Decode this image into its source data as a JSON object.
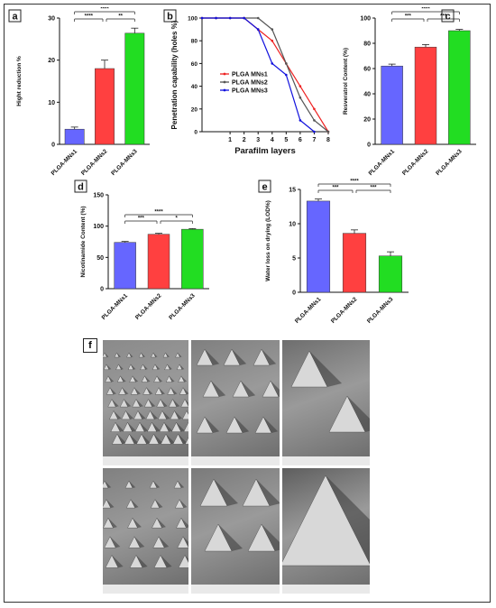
{
  "charts": {
    "a": {
      "letter": "a",
      "type": "bar",
      "ylabel": "Hight reduction %",
      "yticks": [
        0,
        10,
        20,
        30
      ],
      "ylim": [
        0,
        30
      ],
      "categories": [
        "PLGA-MNs1",
        "PLGA-MNs2",
        "PLGA-MNs3"
      ],
      "values": [
        3.6,
        18,
        26.4
      ],
      "errors": [
        0.5,
        2,
        1.2
      ],
      "colors": [
        "#6666ff",
        "#ff4040",
        "#22dd22"
      ],
      "sig": [
        {
          "from": 0,
          "to": 2,
          "label": "****"
        },
        {
          "from": 0,
          "to": 1,
          "label": "****"
        },
        {
          "from": 1,
          "to": 2,
          "label": "**"
        }
      ]
    },
    "b": {
      "letter": "b",
      "type": "line",
      "ylabel": "Penetration capability (holes %)",
      "xlabel": "Parafilm layers",
      "xticks": [
        1,
        2,
        3,
        4,
        5,
        6,
        7,
        8
      ],
      "yticks": [
        0,
        20,
        40,
        60,
        80,
        100
      ],
      "xlim": [
        -1,
        8
      ],
      "ylim": [
        0,
        100
      ],
      "series": [
        {
          "name": "PLGA MNs1",
          "color": "#ee2222",
          "x": [
            -1,
            0,
            1,
            2,
            3,
            4,
            5,
            6,
            7,
            8
          ],
          "y": [
            100,
            100,
            100,
            100,
            90,
            80,
            60,
            40,
            20,
            0
          ]
        },
        {
          "name": "PLGA MNs2",
          "color": "#555555",
          "x": [
            -1,
            0,
            1,
            2,
            3,
            4,
            5,
            6,
            7,
            8
          ],
          "y": [
            100,
            100,
            100,
            100,
            100,
            90,
            60,
            30,
            10,
            0
          ]
        },
        {
          "name": "PLGA MNs3",
          "color": "#1111dd",
          "x": [
            -1,
            0,
            1,
            2,
            3,
            4,
            5,
            6,
            7
          ],
          "y": [
            100,
            100,
            100,
            100,
            90,
            60,
            50,
            10,
            0
          ]
        }
      ]
    },
    "c": {
      "letter": "c",
      "type": "bar",
      "ylabel": "Resveratrol Content (%)",
      "yticks": [
        0,
        20,
        40,
        60,
        80,
        100
      ],
      "ylim": [
        0,
        100
      ],
      "categories": [
        "PLGA-MNs1",
        "PLGA-MNs2",
        "PLGA-MNs3"
      ],
      "values": [
        62,
        77,
        90
      ],
      "errors": [
        1.5,
        2,
        1
      ],
      "colors": [
        "#6666ff",
        "#ff4040",
        "#22dd22"
      ],
      "sig": [
        {
          "from": 0,
          "to": 2,
          "label": "****"
        },
        {
          "from": 0,
          "to": 1,
          "label": "***"
        },
        {
          "from": 1,
          "to": 2,
          "label": "***"
        }
      ]
    },
    "d": {
      "letter": "d",
      "type": "bar",
      "ylabel": "Nicotinamide Content (%)",
      "yticks": [
        0,
        50,
        100,
        150
      ],
      "ylim": [
        0,
        150
      ],
      "categories": [
        "PLGA-MNs1",
        "PLGA-MNs2",
        "PLGA-MNs3"
      ],
      "values": [
        74,
        87,
        95
      ],
      "errors": [
        1.5,
        1.5,
        1
      ],
      "colors": [
        "#6666ff",
        "#ff4040",
        "#22dd22"
      ],
      "sig": [
        {
          "from": 0,
          "to": 2,
          "label": "****"
        },
        {
          "from": 0,
          "to": 1,
          "label": "***"
        },
        {
          "from": 1,
          "to": 2,
          "label": "*"
        }
      ]
    },
    "e": {
      "letter": "e",
      "type": "bar",
      "ylabel": "Water loss on drying (LOD%)",
      "yticks": [
        0,
        5,
        10,
        15
      ],
      "ylim": [
        0,
        15
      ],
      "categories": [
        "PLGA-MNs1",
        "PLGA-MNs2",
        "PLGA-MNs3"
      ],
      "values": [
        13.3,
        8.6,
        5.3
      ],
      "errors": [
        0.3,
        0.5,
        0.6
      ],
      "colors": [
        "#6666ff",
        "#ff4040",
        "#22dd22"
      ],
      "sig": [
        {
          "from": 0,
          "to": 2,
          "label": "****"
        },
        {
          "from": 0,
          "to": 1,
          "label": "***"
        },
        {
          "from": 1,
          "to": 2,
          "label": "***"
        }
      ]
    }
  },
  "sem": {
    "letter": "f"
  }
}
